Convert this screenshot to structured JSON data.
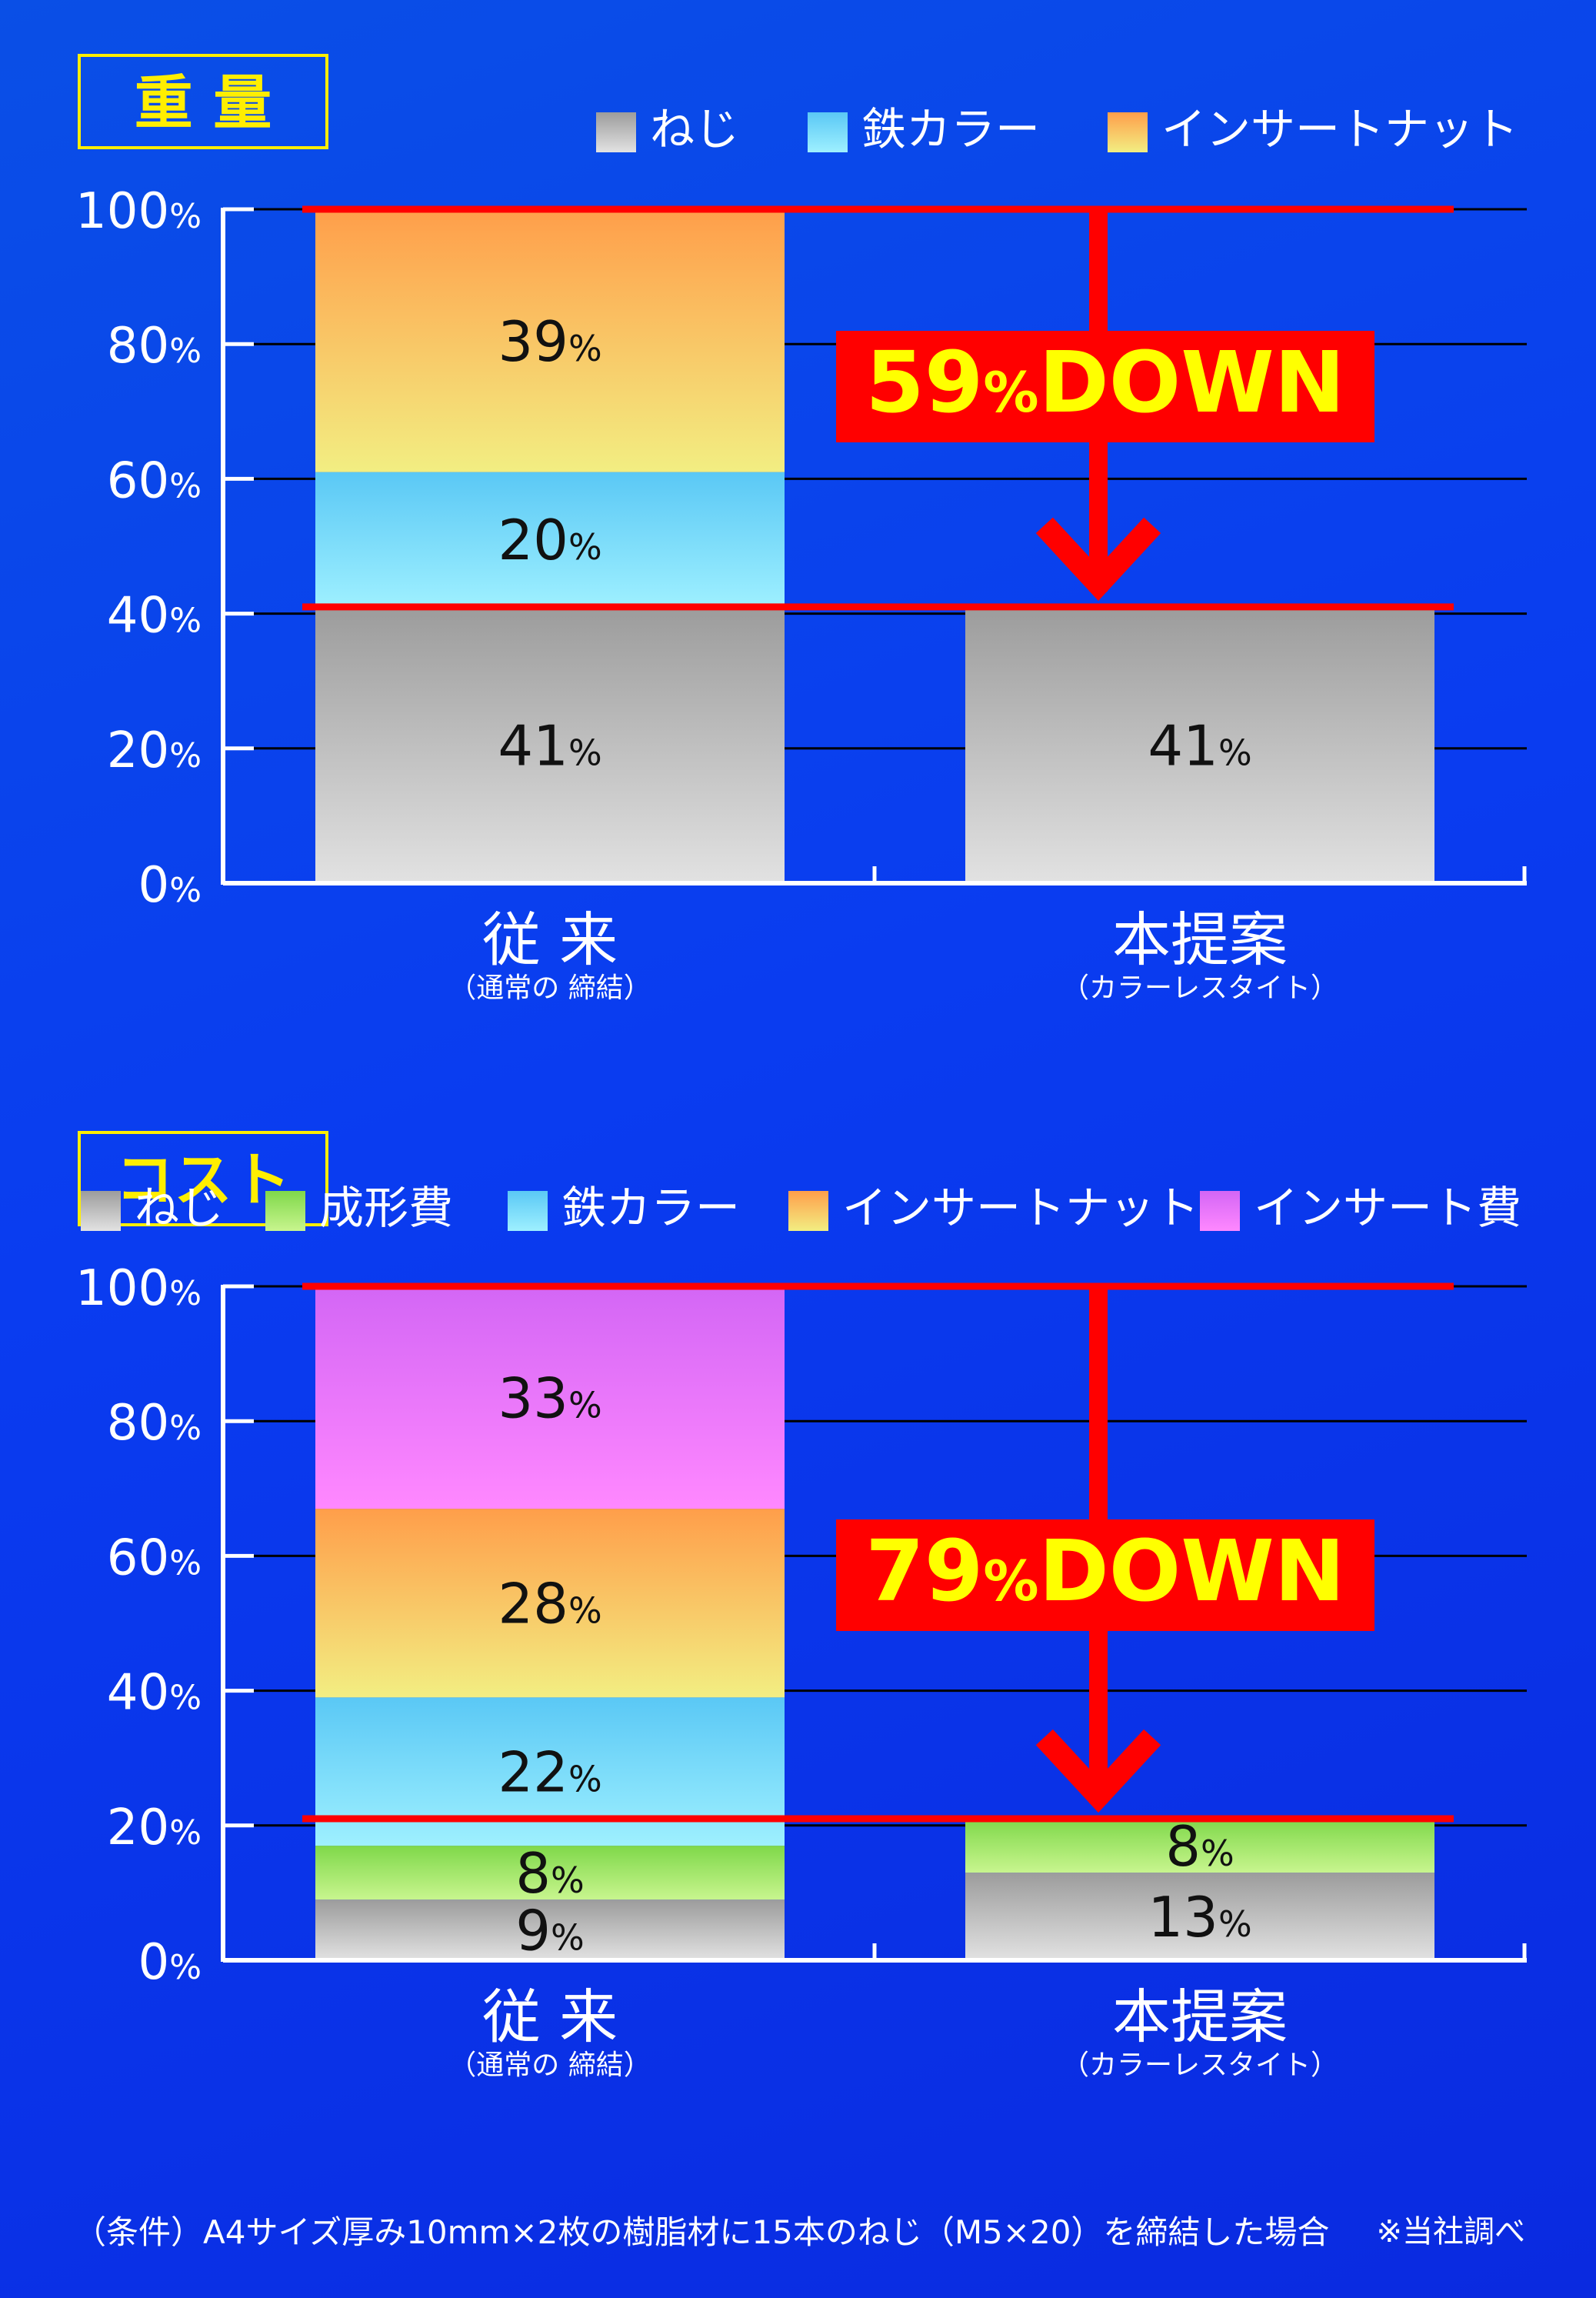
{
  "colors": {
    "background": "#0a3cf0",
    "title_text": "#ffee00",
    "title_border": "#ffee00",
    "reduction_red": "#ff0000",
    "reduction_text": "#ffff00",
    "gridline": "#000000",
    "axis": "#ffffff",
    "segment_text": "#111111"
  },
  "chart_data": [
    {
      "type": "bar",
      "stacked": true,
      "title": "重 量",
      "categories": [
        "従 来",
        "本提案"
      ],
      "category_subtitles": [
        "（通常の 締結）",
        "（カラーレスタイト）"
      ],
      "ylim": [
        0,
        100
      ],
      "y_ticks": [
        0,
        20,
        40,
        60,
        80,
        100
      ],
      "y_tick_suffix": "%",
      "grid": true,
      "legend_position": "top-right",
      "series": [
        {
          "name": "ねじ",
          "color_top": "#9c9c9c",
          "color_bottom": "#e2e2e2",
          "values": [
            41,
            41
          ]
        },
        {
          "name": "鉄カラー",
          "color_top": "#5ac8f5",
          "color_bottom": "#9ef0ff",
          "values": [
            20,
            0
          ]
        },
        {
          "name": "インサートナット",
          "color_top": "#ff9e4a",
          "color_bottom": "#f2ee82",
          "values": [
            39,
            0
          ]
        }
      ],
      "segment_labels": [
        [
          "41%",
          "41%"
        ],
        [
          "20%",
          ""
        ],
        [
          "39%",
          ""
        ]
      ],
      "reduction": {
        "percent": "59%",
        "word": "DOWN",
        "from": 100,
        "to": 41
      }
    },
    {
      "type": "bar",
      "stacked": true,
      "title": "コスト",
      "categories": [
        "従 来",
        "本提案"
      ],
      "category_subtitles": [
        "（通常の 締結）",
        "（カラーレスタイト）"
      ],
      "ylim": [
        0,
        100
      ],
      "y_ticks": [
        0,
        20,
        40,
        60,
        80,
        100
      ],
      "y_tick_suffix": "%",
      "grid": true,
      "legend_position": "top",
      "series": [
        {
          "name": "ねじ",
          "color_top": "#9c9c9c",
          "color_bottom": "#e2e2e2",
          "values": [
            9,
            13
          ]
        },
        {
          "name": "成形費",
          "color_top": "#7fd84a",
          "color_bottom": "#c8f58e",
          "values": [
            8,
            8
          ]
        },
        {
          "name": "鉄カラー",
          "color_top": "#5ac8f5",
          "color_bottom": "#9ef0ff",
          "values": [
            22,
            0
          ]
        },
        {
          "name": "インサートナット",
          "color_top": "#ff9e4a",
          "color_bottom": "#f2ee82",
          "values": [
            28,
            0
          ]
        },
        {
          "name": "インサート費",
          "color_top": "#d366f5",
          "color_bottom": "#ff88ff",
          "values": [
            33,
            0
          ]
        }
      ],
      "segment_labels": [
        [
          "9%",
          "13%"
        ],
        [
          "8%",
          "8%"
        ],
        [
          "22%",
          ""
        ],
        [
          "28%",
          ""
        ],
        [
          "33%",
          ""
        ]
      ],
      "reduction": {
        "percent": "79%",
        "word": "DOWN",
        "from": 100,
        "to": 21
      }
    }
  ],
  "footer": {
    "condition": "（条件）A4サイズ厚み10mm×2枚の樹脂材に15本のねじ（M5×20）を締結した場合",
    "source_note": "※当社調べ"
  }
}
